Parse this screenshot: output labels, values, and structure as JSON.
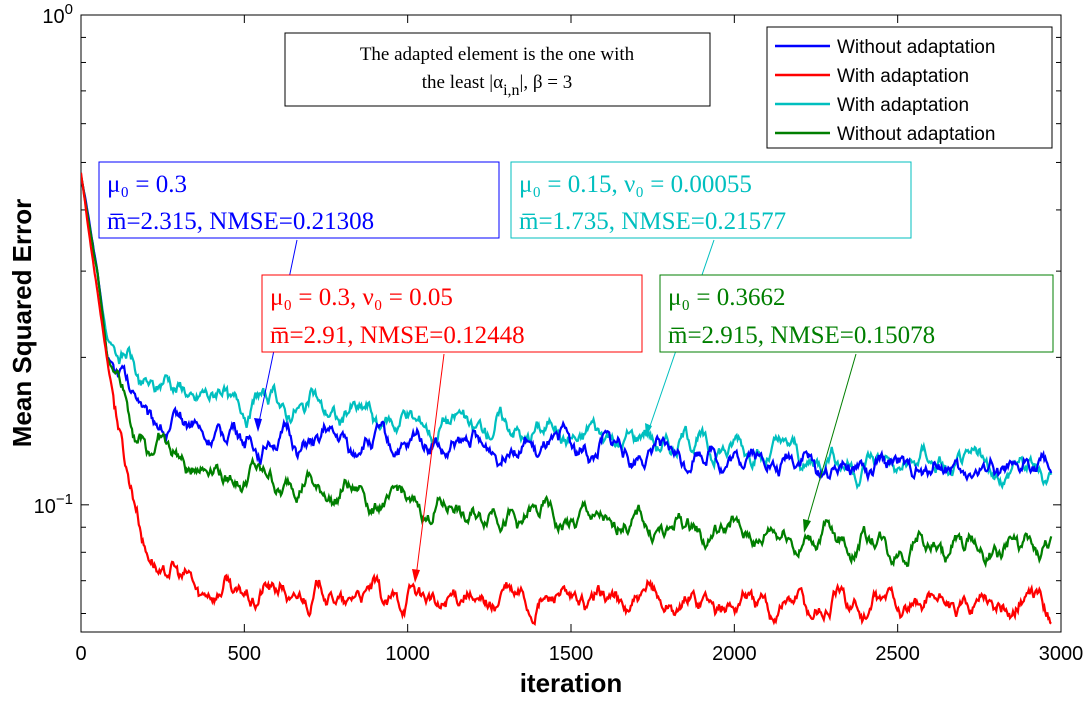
{
  "chart_data": {
    "type": "line",
    "ylabel": "Mean Squared Error",
    "xlabel": "iteration",
    "xlim": [
      0,
      3000
    ],
    "ylim": [
      0.055,
      1
    ],
    "yscale": "log",
    "xticks": [
      "0",
      "500",
      "1000",
      "1500",
      "2000",
      "2500",
      "3000"
    ],
    "ytick_major": [
      {
        "base": "10",
        "exp": "0",
        "value": 1
      },
      {
        "base": "10",
        "exp": "−1",
        "value": 0.1
      }
    ],
    "grid": false,
    "legend_position": "top-right",
    "note": {
      "line1": "The adapted element is the one with",
      "line2_prefix": "the least |α",
      "line2_sub": "i,n",
      "line2_suffix": "|, β = 3"
    },
    "series": [
      {
        "name": "Without adaptation",
        "color": "#0000ff",
        "points": [
          [
            0,
            0.47
          ],
          [
            50,
            0.3
          ],
          [
            80,
            0.2
          ],
          [
            120,
            0.19
          ],
          [
            160,
            0.165
          ],
          [
            200,
            0.15
          ],
          [
            300,
            0.145
          ],
          [
            400,
            0.14
          ],
          [
            500,
            0.137
          ],
          [
            600,
            0.135
          ],
          [
            800,
            0.134
          ],
          [
            1000,
            0.133
          ],
          [
            1200,
            0.131
          ],
          [
            1500,
            0.13
          ],
          [
            1800,
            0.127
          ],
          [
            2000,
            0.125
          ],
          [
            2200,
            0.122
          ],
          [
            2500,
            0.118
          ],
          [
            2800,
            0.117
          ],
          [
            2970,
            0.118
          ]
        ],
        "annotation": {
          "line1": "μ₀ = 0.3",
          "line2": "m̅=2.315, NMSE=0.21308"
        }
      },
      {
        "name": "With adaptation",
        "color": "#ff0000",
        "points": [
          [
            0,
            0.47
          ],
          [
            40,
            0.3
          ],
          [
            80,
            0.2
          ],
          [
            120,
            0.14
          ],
          [
            160,
            0.1
          ],
          [
            200,
            0.083
          ],
          [
            250,
            0.074
          ],
          [
            300,
            0.07
          ],
          [
            400,
            0.067
          ],
          [
            500,
            0.066
          ],
          [
            700,
            0.065
          ],
          [
            1000,
            0.064
          ],
          [
            1500,
            0.0635
          ],
          [
            2000,
            0.063
          ],
          [
            2500,
            0.0625
          ],
          [
            2970,
            0.063
          ]
        ],
        "annotation": {
          "line1": "μ₀ = 0.3, ν₀ = 0.05",
          "line2": "m̅=2.91, NMSE=0.12448"
        }
      },
      {
        "name": "With adaptation",
        "color": "#00bfbf",
        "points": [
          [
            0,
            0.47
          ],
          [
            50,
            0.3
          ],
          [
            80,
            0.22
          ],
          [
            120,
            0.2
          ],
          [
            160,
            0.19
          ],
          [
            200,
            0.178
          ],
          [
            300,
            0.172
          ],
          [
            400,
            0.166
          ],
          [
            500,
            0.162
          ],
          [
            700,
            0.158
          ],
          [
            900,
            0.15
          ],
          [
            1200,
            0.145
          ],
          [
            1500,
            0.14
          ],
          [
            1800,
            0.135
          ],
          [
            2000,
            0.13
          ],
          [
            2200,
            0.126
          ],
          [
            2500,
            0.122
          ],
          [
            2800,
            0.119
          ],
          [
            2970,
            0.118
          ]
        ],
        "annotation": {
          "line1": "μ₀ = 0.15, ν₀ = 0.00055",
          "line2": "m̅=1.735, NMSE=0.21577"
        }
      },
      {
        "name": "Without adaptation",
        "color": "#007f00",
        "points": [
          [
            0,
            0.47
          ],
          [
            50,
            0.3
          ],
          [
            80,
            0.2
          ],
          [
            120,
            0.175
          ],
          [
            160,
            0.15
          ],
          [
            200,
            0.135
          ],
          [
            300,
            0.125
          ],
          [
            400,
            0.118
          ],
          [
            600,
            0.112
          ],
          [
            800,
            0.106
          ],
          [
            1000,
            0.1
          ],
          [
            1200,
            0.096
          ],
          [
            1500,
            0.093
          ],
          [
            1800,
            0.09
          ],
          [
            2000,
            0.088
          ],
          [
            2200,
            0.086
          ],
          [
            2500,
            0.083
          ],
          [
            2800,
            0.081
          ],
          [
            2970,
            0.082
          ]
        ],
        "annotation": {
          "line1": "μ₀ = 0.3662",
          "line2": "m̅=2.915, NMSE=0.15078"
        }
      }
    ]
  }
}
